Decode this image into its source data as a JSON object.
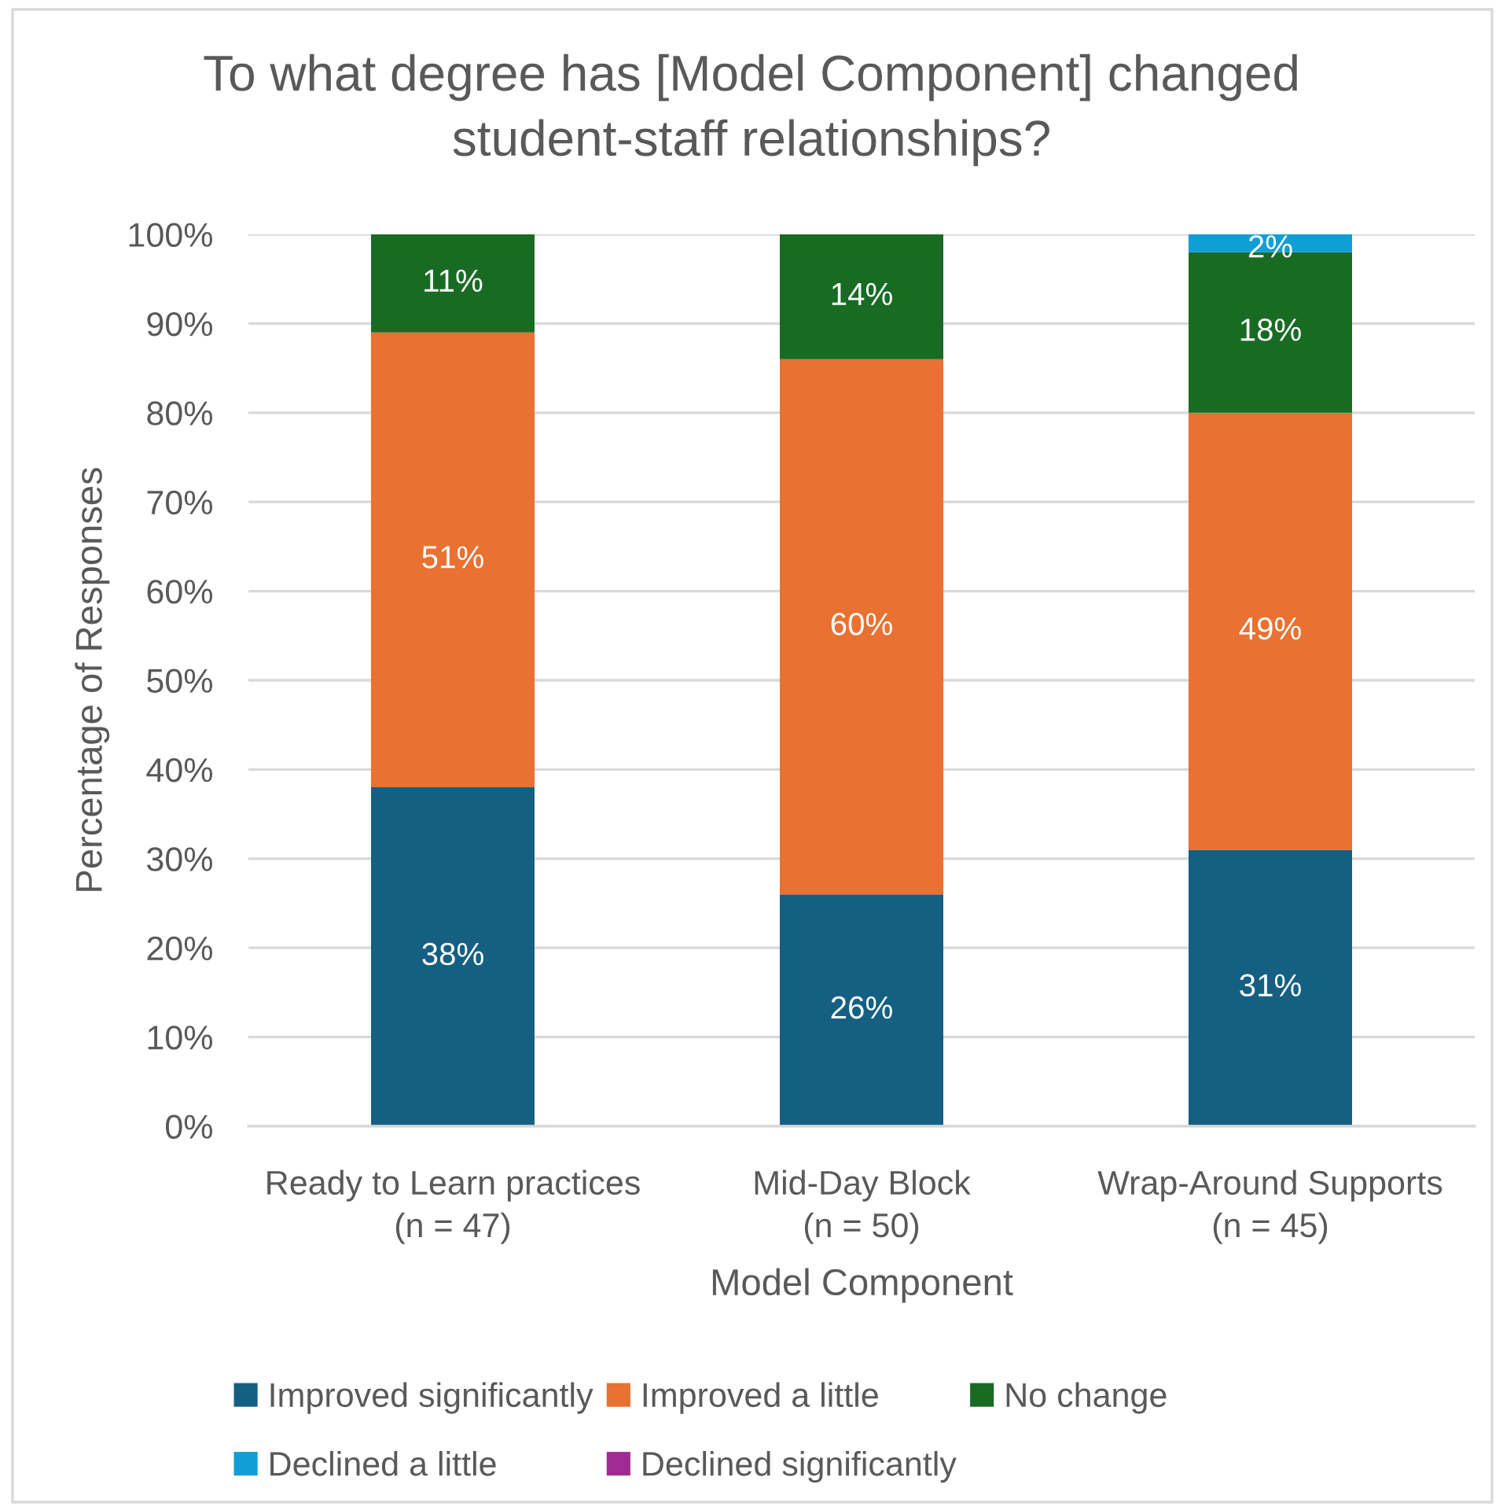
{
  "chart_data": {
    "type": "bar",
    "stacked": true,
    "title": "To what degree has [Model Component] changed\nstudent-staff relationships?",
    "xlabel": "Model Component",
    "ylabel": "Percentage of Responses",
    "categories": [
      "Ready to Learn practices\n(n = 47)",
      "Mid-Day Block\n(n = 50)",
      "Wrap-Around Supports\n(n = 45)"
    ],
    "series": [
      {
        "name": "Improved significantly",
        "color": "#156082",
        "values": [
          38,
          26,
          31
        ],
        "value_labels": [
          "38%",
          "26%",
          "31%"
        ]
      },
      {
        "name": "Improved a little",
        "color": "#e97132",
        "values": [
          51,
          60,
          49
        ],
        "value_labels": [
          "51%",
          "60%",
          "49%"
        ]
      },
      {
        "name": "No change",
        "color": "#196b24",
        "values": [
          11,
          14,
          18
        ],
        "value_labels": [
          "11%",
          "14%",
          "18%"
        ]
      },
      {
        "name": "Declined a little",
        "color": "#0f9ed5",
        "values": [
          null,
          null,
          2
        ],
        "value_labels": [
          null,
          null,
          "2%"
        ]
      },
      {
        "name": "Declined significantly",
        "color": "#a02b93",
        "values": [
          null,
          null,
          null
        ]
      }
    ],
    "ylim": [
      0,
      100
    ],
    "yticks": [
      {
        "value": 0,
        "label": "0%"
      },
      {
        "value": 10,
        "label": "10%"
      },
      {
        "value": 20,
        "label": "20%"
      },
      {
        "value": 30,
        "label": "30%"
      },
      {
        "value": 40,
        "label": "40%"
      },
      {
        "value": 50,
        "label": "50%"
      },
      {
        "value": 60,
        "label": "60%"
      },
      {
        "value": 70,
        "label": "70%"
      },
      {
        "value": 80,
        "label": "80%"
      },
      {
        "value": 90,
        "label": "90%"
      },
      {
        "value": 100,
        "label": "100%"
      }
    ],
    "grid": "y",
    "legend": "bottom"
  }
}
